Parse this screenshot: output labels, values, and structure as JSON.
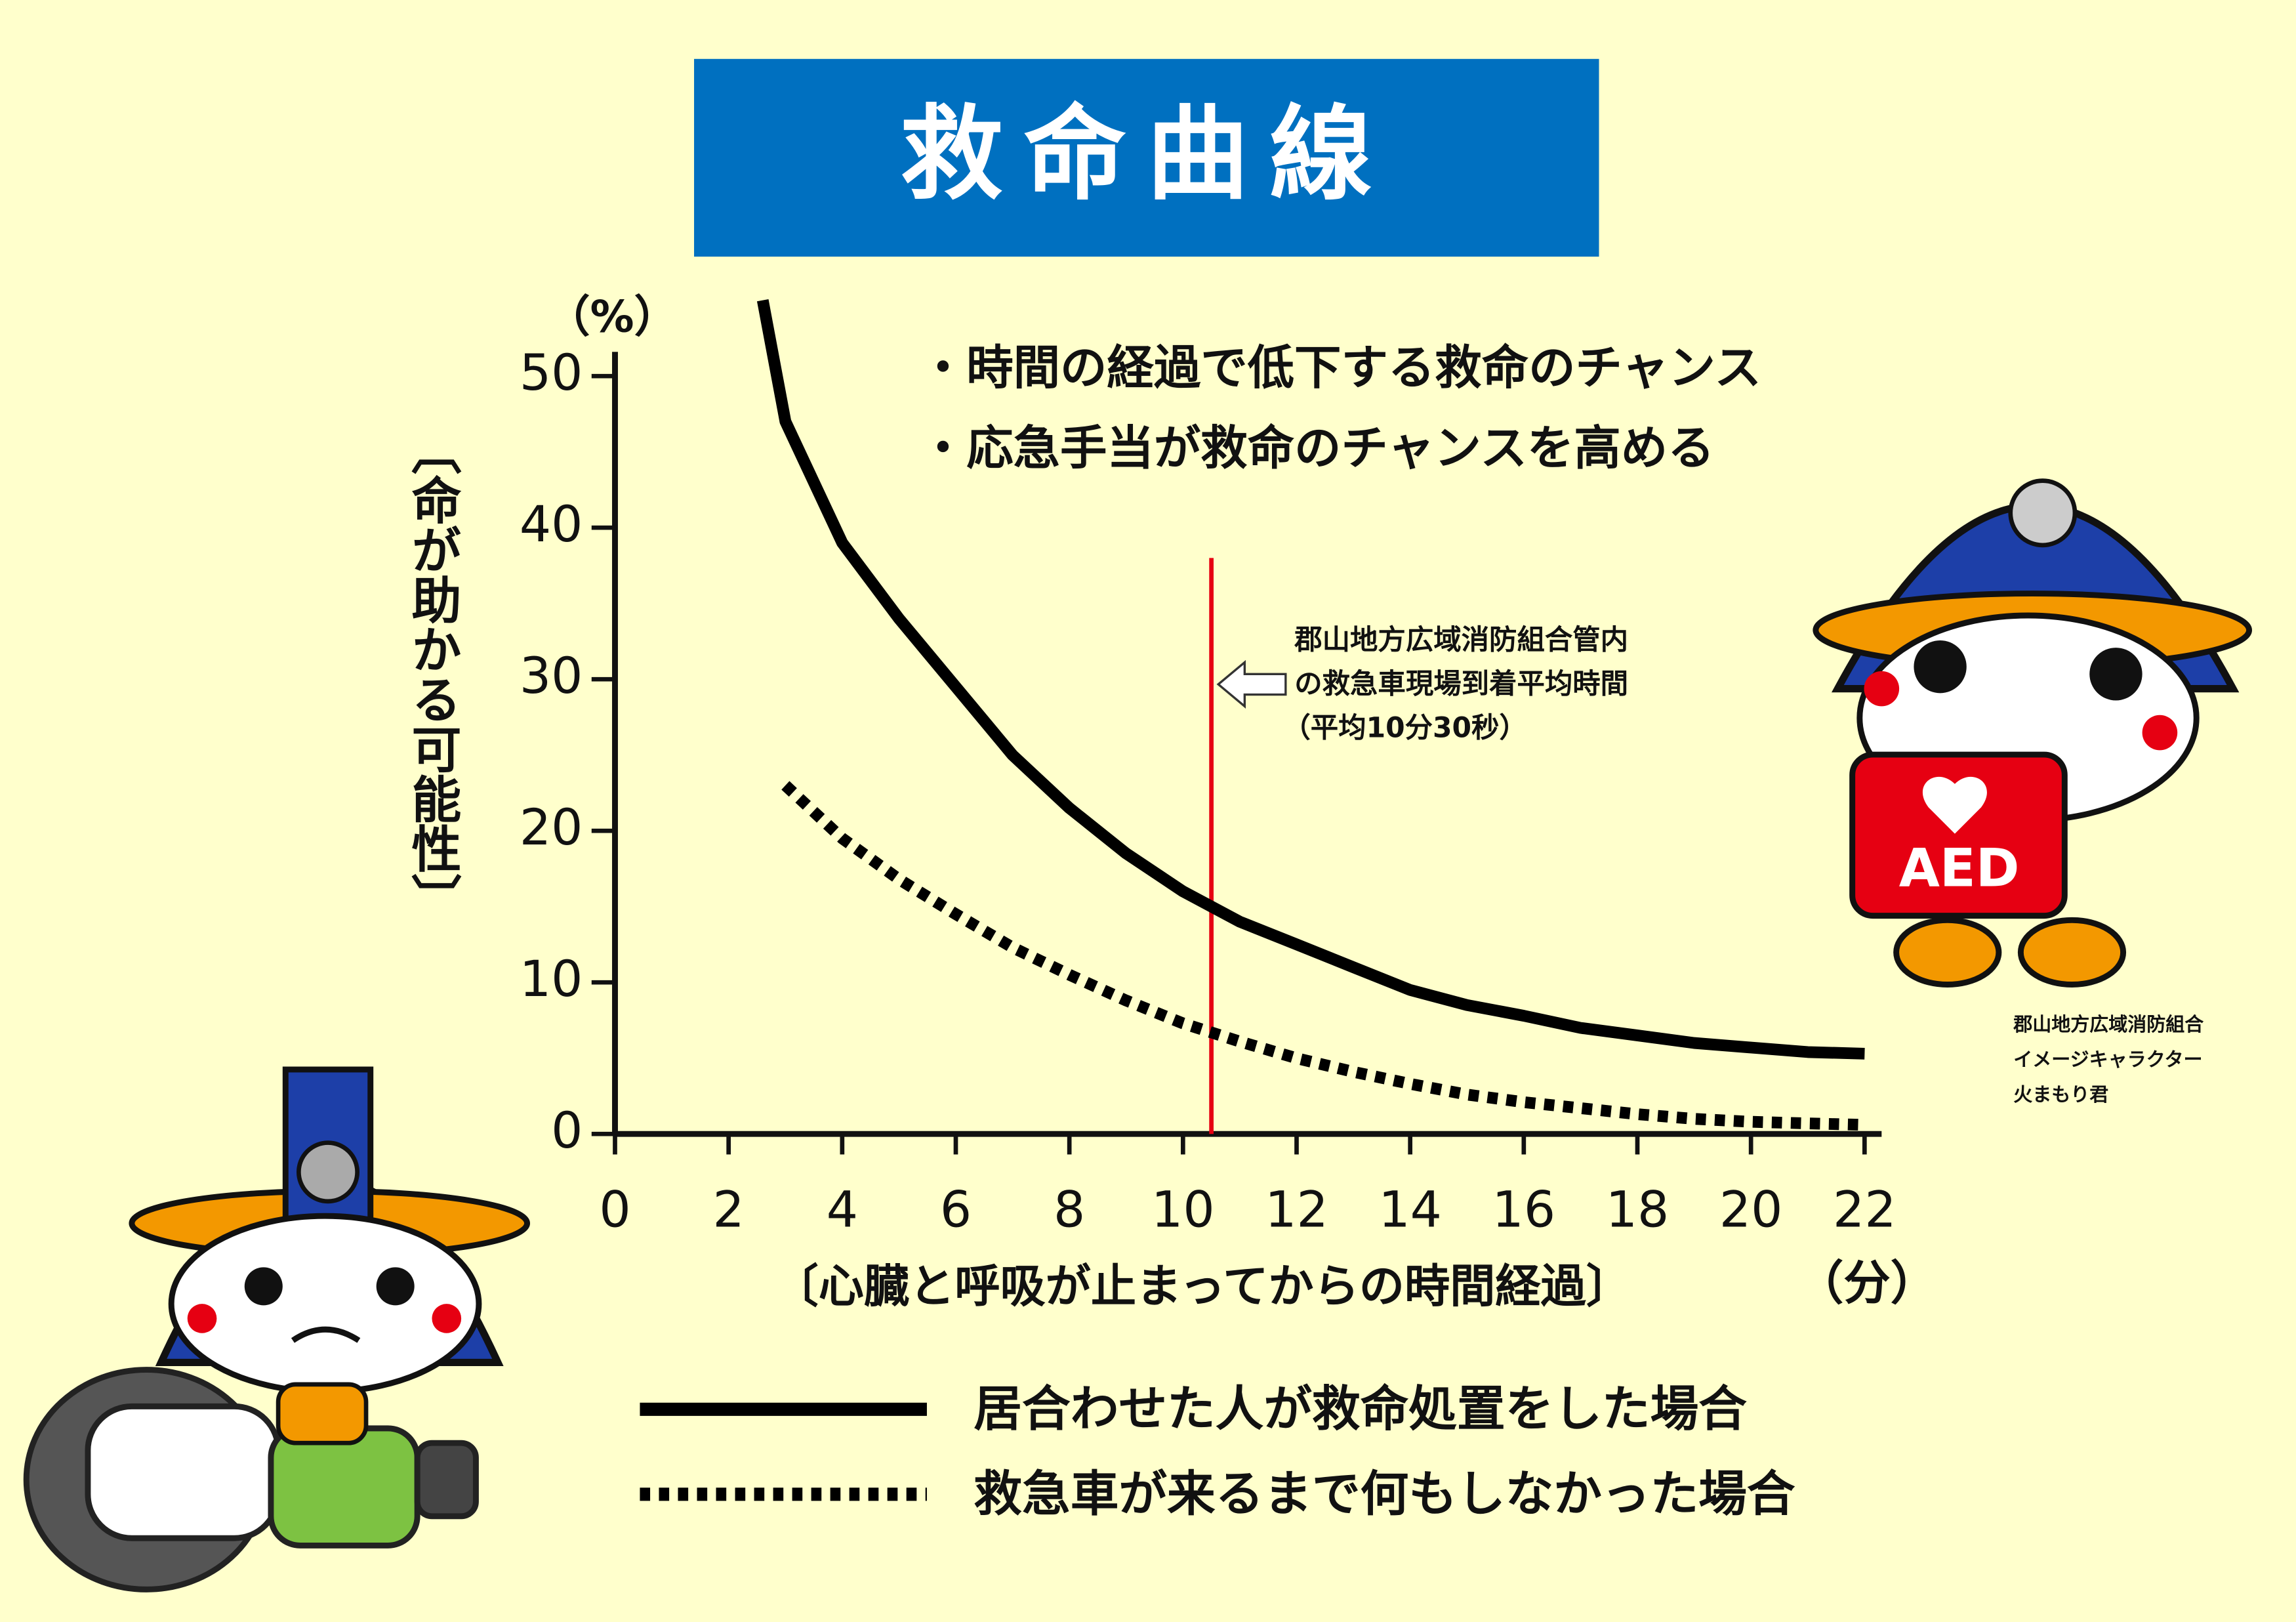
{
  "title": "救命曲線",
  "chart_data": {
    "type": "line",
    "y_unit": "（%）",
    "x_unit": "（分）",
    "y_label": "〔命が助かる可能性〕",
    "x_label": "〔心臓と呼吸が止まってからの時間経過〕",
    "bullets": [
      "・時間の経過で低下する救命のチャンス",
      "・応急手当が救命のチャンスを高める"
    ],
    "annotation": [
      "郡山地方広域消防組合管内",
      "の救急車現場到着平均時間",
      "（平均10分30秒）"
    ],
    "xlim": [
      0,
      22.3
    ],
    "xticks": [
      0,
      2,
      4,
      6,
      8,
      10,
      12,
      14,
      16,
      18,
      20,
      22
    ],
    "ylim": [
      0,
      51.6
    ],
    "yticks": [
      0,
      10,
      20,
      30,
      40,
      50
    ],
    "grid": false,
    "series": [
      {
        "name": "居合わせた人が救命処置をした場合",
        "color": "#000000",
        "style": "solid",
        "x": [
          2.6,
          3,
          4,
          5,
          6,
          7,
          8,
          9,
          10,
          11,
          12,
          13,
          14,
          15,
          16,
          17,
          18,
          19,
          20,
          21,
          22
        ],
        "values": [
          55,
          47,
          39,
          34,
          29.5,
          25,
          21.5,
          18.5,
          16,
          14,
          12.5,
          11,
          9.5,
          8.5,
          7.8,
          7,
          6.5,
          6,
          5.7,
          5.4,
          5.3
        ]
      },
      {
        "name": "救急車が来るまで何もしなかった場合",
        "color": "#000000",
        "style": "dotted",
        "x": [
          3,
          4,
          5,
          6,
          7,
          8,
          9,
          10,
          11,
          12,
          13,
          14,
          15,
          16,
          17,
          18,
          19,
          20,
          21,
          22
        ],
        "values": [
          23,
          19.5,
          16.8,
          14.5,
          12.3,
          10.5,
          8.8,
          7.3,
          6.1,
          5,
          4.1,
          3.3,
          2.6,
          2.1,
          1.7,
          1.3,
          1,
          0.8,
          0.7,
          0.6
        ]
      }
    ],
    "reference_line": {
      "x": 10.5,
      "y": [
        0,
        38
      ],
      "color": "#e60012"
    }
  },
  "aed_label": "AED",
  "caption": [
    "郡山地方広域消防組合",
    "イメージキャラクター",
    "火まもり君"
  ]
}
